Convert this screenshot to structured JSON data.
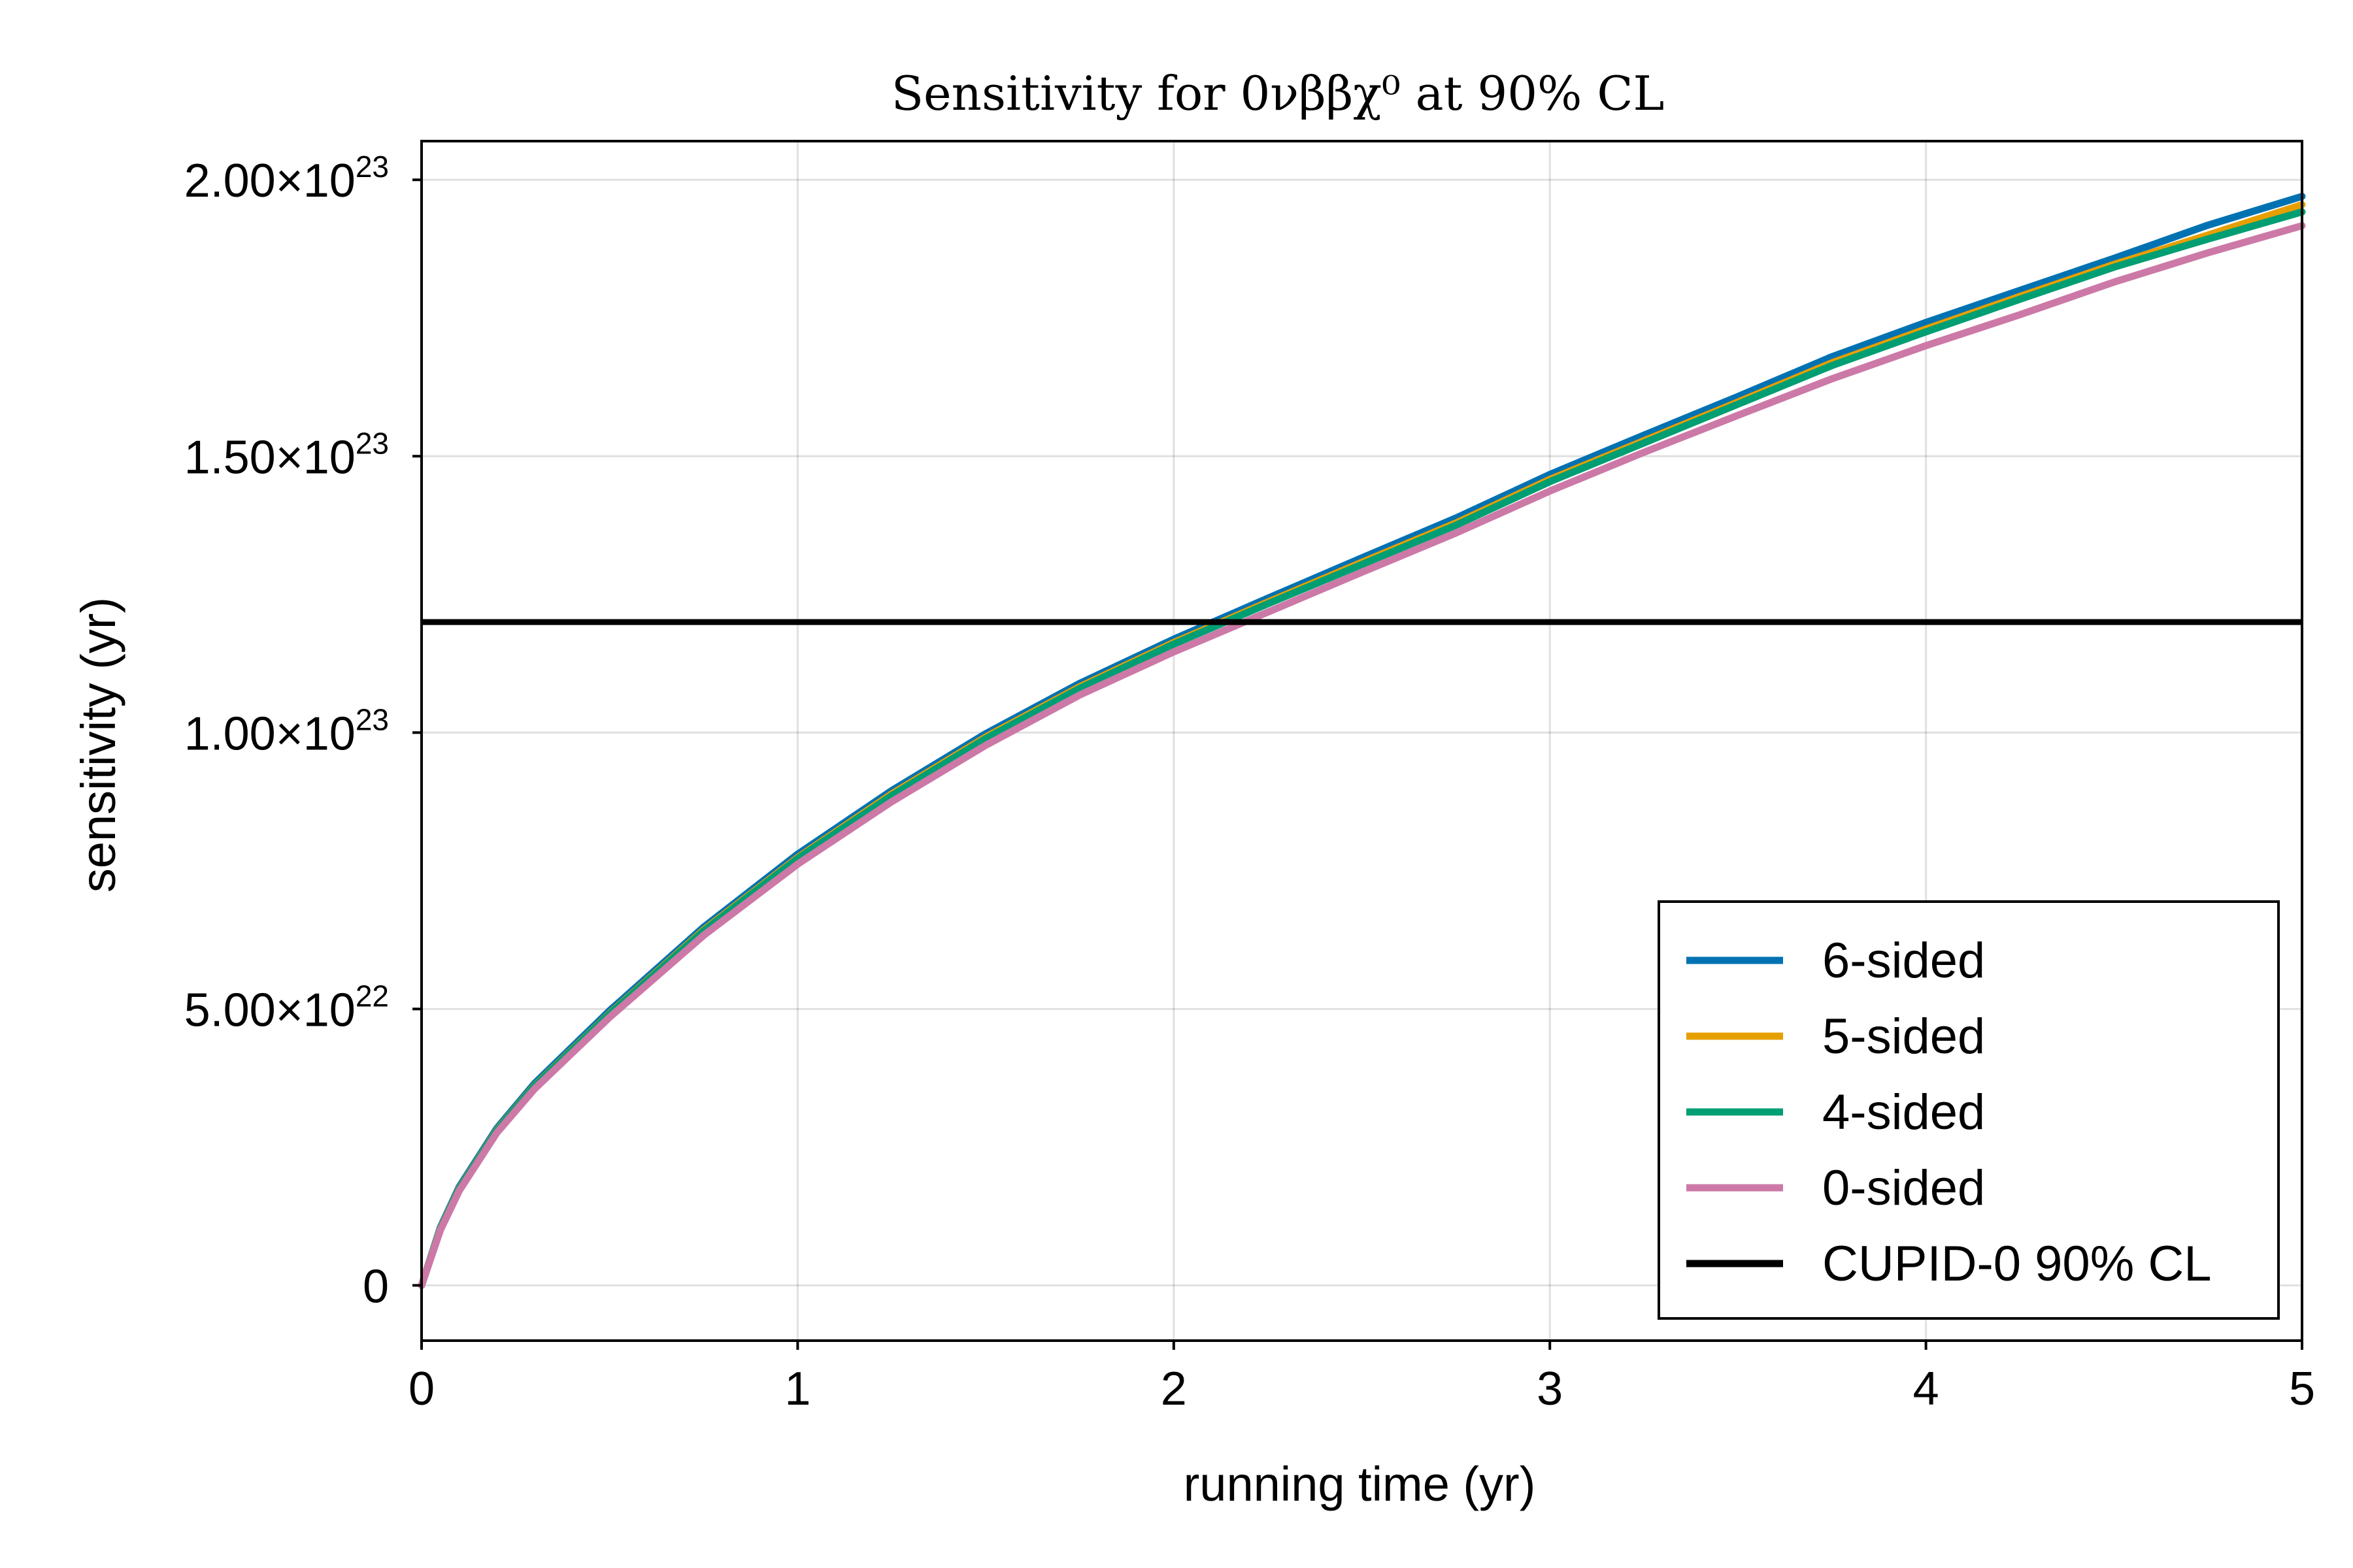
{
  "chart_data": {
    "type": "line",
    "title": "Sensitivity for 0νββχ⁰ at 90% CL",
    "xlabel": "running time (yr)",
    "ylabel": "sensitivity (yr)",
    "xlim": [
      0,
      5
    ],
    "ylim": [
      -1e+22,
      2.07e+23
    ],
    "xticks": [
      0,
      1,
      2,
      3,
      4,
      5
    ],
    "xtick_labels": [
      "0",
      "1",
      "2",
      "3",
      "4",
      "5"
    ],
    "yticks": [
      0,
      5e+22,
      1e+23,
      1.5e+23,
      2e+23
    ],
    "ytick_labels": [
      {
        "mantissa": "0",
        "exponent": ""
      },
      {
        "mantissa": "5.00×10",
        "exponent": "22"
      },
      {
        "mantissa": "1.00×10",
        "exponent": "23"
      },
      {
        "mantissa": "1.50×10",
        "exponent": "23"
      },
      {
        "mantissa": "2.00×10",
        "exponent": "23"
      }
    ],
    "grid": true,
    "legend_position": "bottom-right",
    "x": [
      0,
      0.05,
      0.1,
      0.2,
      0.3,
      0.5,
      0.75,
      1.0,
      1.25,
      1.5,
      1.75,
      2.0,
      2.25,
      2.5,
      2.75,
      3.0,
      3.25,
      3.5,
      3.75,
      4.0,
      4.25,
      4.5,
      4.75,
      5.0
    ],
    "series": [
      {
        "name": "6-sided",
        "color": "#0072B2",
        "values": [
          0,
          1.05e+22,
          1.78e+22,
          2.84e+22,
          3.65e+22,
          4.97e+22,
          6.48e+22,
          7.8e+22,
          8.95e+22,
          9.98e+22,
          1.089e+23,
          1.169e+23,
          1.243e+23,
          1.316e+23,
          1.388e+23,
          1.467e+23,
          1.538e+23,
          1.608e+23,
          1.68e+23,
          1.742e+23,
          1.8e+23,
          1.858e+23,
          1.918e+23,
          1.97e+23
        ]
      },
      {
        "name": "5-sided",
        "color": "#E69F00",
        "values": [
          0,
          1.03e+22,
          1.75e+22,
          2.81e+22,
          3.61e+22,
          4.92e+22,
          6.43e+22,
          7.74e+22,
          8.89e+22,
          9.92e+22,
          1.083e+23,
          1.163e+23,
          1.236e+23,
          1.308e+23,
          1.379e+23,
          1.458e+23,
          1.528e+23,
          1.598e+23,
          1.669e+23,
          1.73e+23,
          1.789e+23,
          1.847e+23,
          1.9e+23,
          1.955e+23
        ]
      },
      {
        "name": "4-sided",
        "color": "#009E73",
        "values": [
          0,
          1.02e+22,
          1.74e+22,
          2.8e+22,
          3.6e+22,
          4.91e+22,
          6.41e+22,
          7.72e+22,
          8.86e+22,
          9.89e+22,
          1.08e+23,
          1.16e+23,
          1.233e+23,
          1.304e+23,
          1.375e+23,
          1.454e+23,
          1.524e+23,
          1.594e+23,
          1.664e+23,
          1.725e+23,
          1.784e+23,
          1.842e+23,
          1.893e+23,
          1.942e+23
        ]
      },
      {
        "name": "0-sided",
        "color": "#CC79A7",
        "values": [
          0,
          1e+22,
          1.71e+22,
          2.76e+22,
          3.55e+22,
          4.85e+22,
          6.33e+22,
          7.62e+22,
          8.75e+22,
          9.77e+22,
          1.068e+23,
          1.146e+23,
          1.218e+23,
          1.29e+23,
          1.361e+23,
          1.437e+23,
          1.507e+23,
          1.574e+23,
          1.64e+23,
          1.7e+23,
          1.756e+23,
          1.815e+23,
          1.868e+23,
          1.917e+23
        ]
      }
    ],
    "reference_line": {
      "name": "CUPID-0 90% CL",
      "color": "#000000",
      "y": 1.2e+23
    }
  }
}
